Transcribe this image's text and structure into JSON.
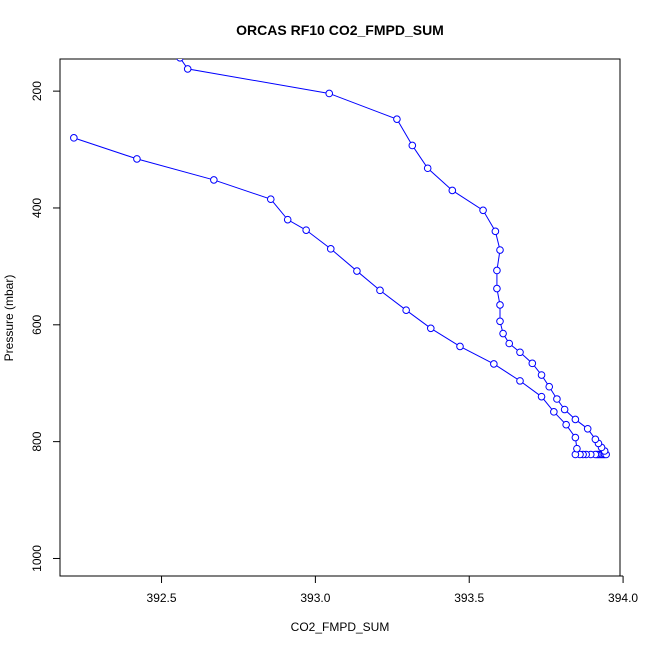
{
  "chart_data": {
    "type": "line",
    "title": "ORCAS RF10 CO2_FMPD_SUM",
    "xlabel": "CO2_FMPD_SUM",
    "ylabel": "Pressure (mbar)",
    "xlim": [
      392.17,
      393.99
    ],
    "ylim": [
      1030,
      145
    ],
    "y_reversed": true,
    "grid": false,
    "line_color": "#0000ff",
    "marker": "open-circle",
    "x_ticks": [
      392.5,
      393.0,
      393.5,
      394.0
    ],
    "x_tick_labels": [
      "392.5",
      "393.0",
      "393.5",
      "394.0"
    ],
    "y_ticks": [
      200,
      400,
      600,
      800,
      1000
    ],
    "y_tick_labels": [
      "200",
      "400",
      "600",
      "800",
      "1000"
    ],
    "series": [
      {
        "points": [
          [
            393.94,
            822
          ],
          [
            393.935,
            822
          ],
          [
            393.93,
            822
          ],
          [
            393.925,
            822
          ],
          [
            393.92,
            822
          ],
          [
            393.915,
            822
          ],
          [
            393.91,
            822
          ],
          [
            393.895,
            822
          ],
          [
            393.88,
            822
          ],
          [
            393.87,
            822
          ],
          [
            393.86,
            822
          ],
          [
            393.845,
            822
          ],
          [
            393.85,
            812
          ],
          [
            393.845,
            793
          ],
          [
            393.815,
            771
          ],
          [
            393.775,
            749
          ],
          [
            393.735,
            723
          ],
          [
            393.665,
            696
          ],
          [
            393.58,
            667
          ],
          [
            393.47,
            637
          ],
          [
            393.375,
            606
          ],
          [
            393.295,
            575
          ],
          [
            393.21,
            541
          ],
          [
            393.135,
            508
          ],
          [
            393.05,
            470
          ],
          [
            392.97,
            438
          ],
          [
            392.91,
            420
          ],
          [
            392.855,
            385
          ],
          [
            392.67,
            352
          ],
          [
            392.42,
            316
          ],
          [
            392.215,
            280
          ]
        ]
      },
      {
        "points": [
          [
            393.945,
            822
          ],
          [
            393.94,
            816
          ],
          [
            393.93,
            810
          ],
          [
            393.92,
            803
          ],
          [
            393.91,
            796
          ],
          [
            393.885,
            778
          ],
          [
            393.845,
            762
          ],
          [
            393.81,
            745
          ],
          [
            393.785,
            727
          ],
          [
            393.76,
            706
          ],
          [
            393.735,
            686
          ],
          [
            393.705,
            666
          ],
          [
            393.665,
            647
          ],
          [
            393.63,
            632
          ],
          [
            393.61,
            615
          ],
          [
            393.6,
            594
          ],
          [
            393.6,
            566
          ],
          [
            393.59,
            538
          ],
          [
            393.59,
            507
          ],
          [
            393.6,
            472
          ],
          [
            393.585,
            440
          ],
          [
            393.545,
            404
          ],
          [
            393.445,
            370
          ],
          [
            393.365,
            332
          ],
          [
            393.315,
            293
          ],
          [
            393.265,
            248
          ],
          [
            393.045,
            204
          ],
          [
            392.585,
            162
          ],
          [
            392.56,
            143
          ]
        ]
      }
    ]
  }
}
